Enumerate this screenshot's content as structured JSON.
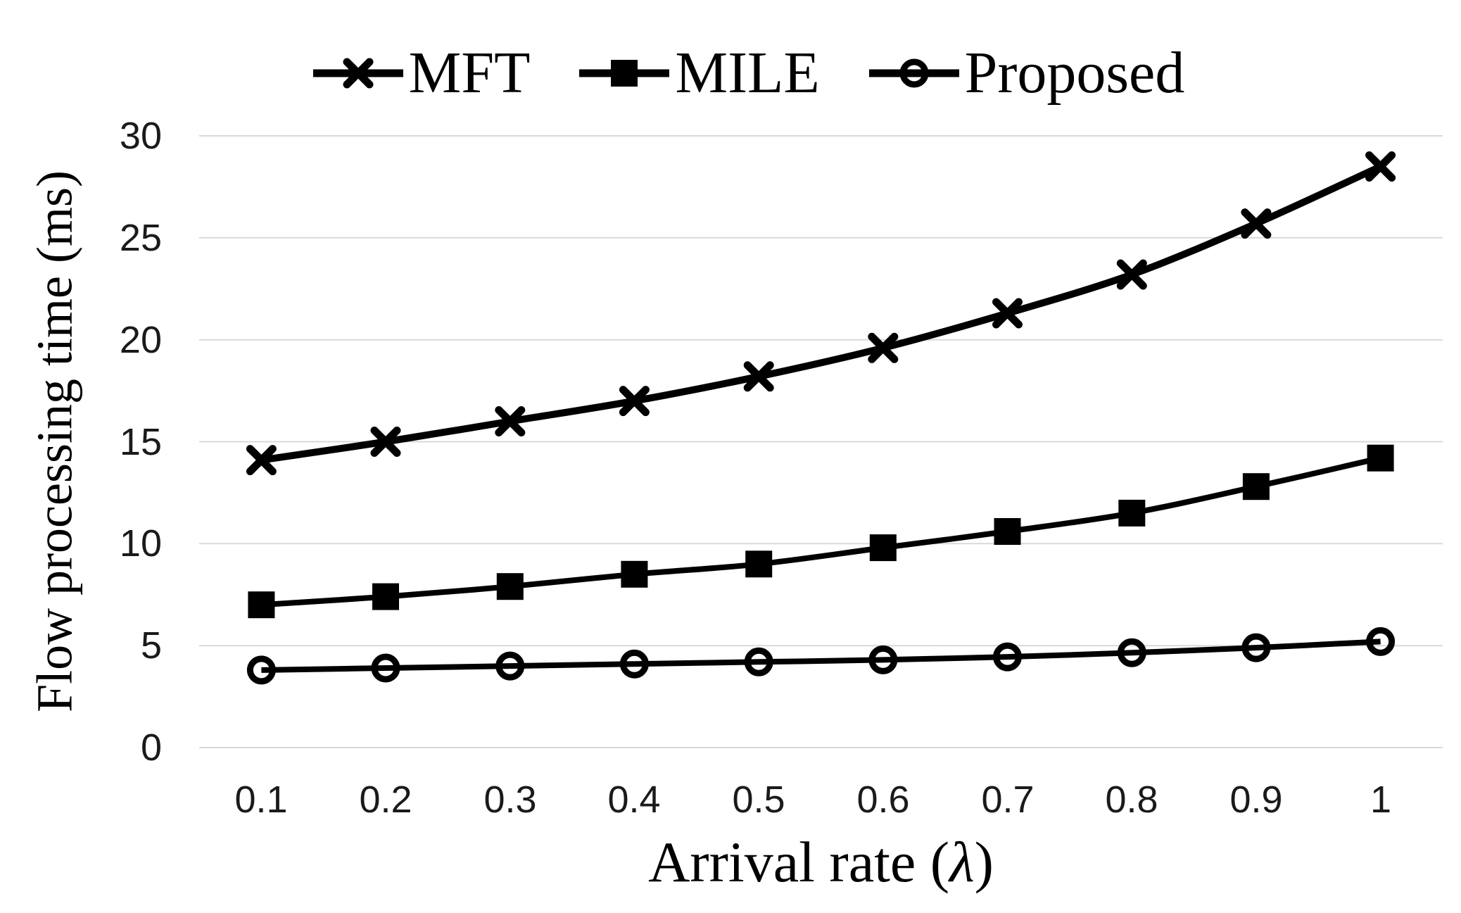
{
  "chart_data": {
    "type": "line",
    "title": "",
    "xlabel": "Arrival rate (λ)",
    "ylabel": "Flow processing time (ms)",
    "x": [
      0.1,
      0.2,
      0.3,
      0.4,
      0.5,
      0.6,
      0.7,
      0.8,
      0.9,
      1.0
    ],
    "x_tick_labels": [
      "0.1",
      "0.2",
      "0.3",
      "0.4",
      "0.5",
      "0.6",
      "0.7",
      "0.8",
      "0.9",
      "1"
    ],
    "y_ticks": [
      0,
      5,
      10,
      15,
      20,
      25,
      30
    ],
    "y_tick_labels": [
      "0",
      "5",
      "10",
      "15",
      "20",
      "25",
      "30"
    ],
    "ylim": [
      0,
      30
    ],
    "grid": "horizontal",
    "legend_position": "top-center",
    "series": [
      {
        "name": "MFT",
        "marker": "x",
        "values": [
          14.1,
          15.0,
          16.0,
          17.0,
          18.2,
          19.6,
          21.3,
          23.2,
          25.7,
          28.5
        ]
      },
      {
        "name": "MILE",
        "marker": "square",
        "values": [
          7.0,
          7.4,
          7.9,
          8.5,
          9.0,
          9.8,
          10.6,
          11.5,
          12.8,
          14.2
        ]
      },
      {
        "name": "Proposed",
        "marker": "circle",
        "values": [
          3.8,
          3.9,
          4.0,
          4.1,
          4.2,
          4.3,
          4.45,
          4.65,
          4.9,
          5.2
        ]
      }
    ],
    "line_color": "#000000",
    "gridline_color": "#d9d9d9",
    "text_color": "#1a1a1a"
  }
}
